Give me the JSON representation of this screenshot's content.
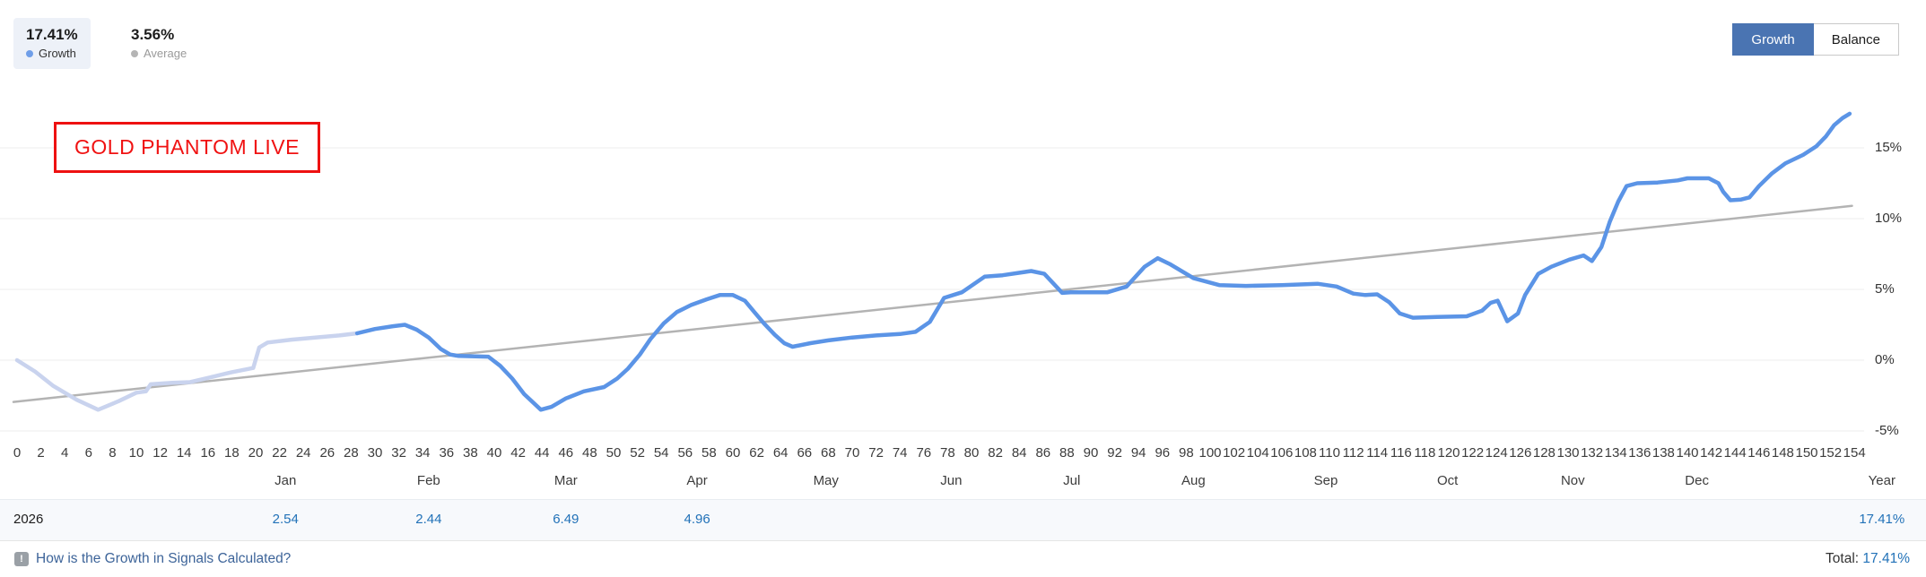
{
  "header": {
    "growth_value": "17.41%",
    "growth_label": "Growth",
    "average_value": "3.56%",
    "average_label": "Average",
    "growth_dot_color": "#6f9ee8",
    "average_dot_color": "#b5b5b5",
    "growth_button": "Growth",
    "balance_button": "Balance",
    "active_button": "Growth",
    "accent_color": "#4a74b2"
  },
  "chart_data": {
    "type": "line",
    "title": "GOLD PHANTOM LIVE",
    "title_color": "#f01212",
    "grid": true,
    "xlabel": "",
    "ylabel": "",
    "x_range": [
      0,
      154
    ],
    "x_tick_step": 2,
    "x_ticks": [
      0,
      2,
      4,
      6,
      8,
      10,
      12,
      14,
      16,
      18,
      20,
      22,
      24,
      26,
      28,
      30,
      32,
      34,
      36,
      38,
      40,
      42,
      44,
      46,
      48,
      50,
      52,
      54,
      56,
      58,
      60,
      62,
      64,
      66,
      68,
      70,
      72,
      74,
      76,
      78,
      80,
      82,
      84,
      86,
      88,
      90,
      92,
      94,
      96,
      98,
      100,
      102,
      104,
      106,
      108,
      110,
      112,
      114,
      116,
      118,
      120,
      122,
      124,
      126,
      128,
      130,
      132,
      134,
      136,
      138,
      140,
      142,
      144,
      146,
      148,
      150,
      152,
      154
    ],
    "y_axis": {
      "labels": [
        "15%",
        "10%",
        "5%",
        "0%",
        "-5%"
      ],
      "values": [
        15,
        10,
        5,
        0,
        -5
      ],
      "ylim": [
        -7.5,
        20
      ]
    },
    "months": [
      {
        "label": "Jan",
        "trade_center": 22.5
      },
      {
        "label": "Feb",
        "trade_center": 34.5
      },
      {
        "label": "Mar",
        "trade_center": 46
      },
      {
        "label": "Apr",
        "trade_center": 57
      },
      {
        "label": "May",
        "trade_center": 67.8
      },
      {
        "label": "Jun",
        "trade_center": 78.3
      },
      {
        "label": "Jul",
        "trade_center": 88.4
      },
      {
        "label": "Aug",
        "trade_center": 98.6
      },
      {
        "label": "Sep",
        "trade_center": 109.7
      },
      {
        "label": "Oct",
        "trade_center": 119.9
      },
      {
        "label": "Nov",
        "trade_center": 130.4
      },
      {
        "label": "Dec",
        "trade_center": 140.8
      },
      {
        "label": "Year",
        "trade_center": 156.3
      }
    ],
    "series": [
      {
        "name": "growth-early",
        "color": "#c9d3ee",
        "width": 4.5,
        "points": [
          [
            0,
            0
          ],
          [
            1.5,
            -0.8
          ],
          [
            3,
            -1.8
          ],
          [
            5,
            -2.8
          ],
          [
            6.8,
            -3.5
          ],
          [
            8.5,
            -2.9
          ],
          [
            10,
            -2.3
          ],
          [
            10.8,
            -2.2
          ],
          [
            11.2,
            -1.7
          ],
          [
            13,
            -1.6
          ],
          [
            14.5,
            -1.55
          ],
          [
            16,
            -1.25
          ],
          [
            18,
            -0.85
          ],
          [
            19.8,
            -0.55
          ],
          [
            20.3,
            0.9
          ],
          [
            21,
            1.25
          ],
          [
            23,
            1.45
          ],
          [
            25,
            1.6
          ],
          [
            27,
            1.75
          ],
          [
            28.5,
            1.9
          ]
        ]
      },
      {
        "name": "growth",
        "color": "#5b94e6",
        "width": 4.5,
        "points": [
          [
            28.5,
            1.9
          ],
          [
            30,
            2.2
          ],
          [
            31.5,
            2.4
          ],
          [
            32.5,
            2.5
          ],
          [
            33.5,
            2.15
          ],
          [
            34.5,
            1.6
          ],
          [
            35.5,
            0.8
          ],
          [
            36.3,
            0.4
          ],
          [
            37,
            0.3
          ],
          [
            39.5,
            0.25
          ],
          [
            40.5,
            -0.4
          ],
          [
            41.5,
            -1.3
          ],
          [
            42.5,
            -2.4
          ],
          [
            43.9,
            -3.5
          ],
          [
            44.8,
            -3.3
          ],
          [
            46,
            -2.7
          ],
          [
            47.5,
            -2.2
          ],
          [
            49.2,
            -1.9
          ],
          [
            50.3,
            -1.3
          ],
          [
            51.2,
            -0.6
          ],
          [
            52.2,
            0.4
          ],
          [
            53.1,
            1.5
          ],
          [
            54.2,
            2.6
          ],
          [
            55.3,
            3.4
          ],
          [
            56.5,
            3.9
          ],
          [
            57.8,
            4.3
          ],
          [
            58.9,
            4.6
          ],
          [
            60,
            4.6
          ],
          [
            61,
            4.2
          ],
          [
            61.8,
            3.4
          ],
          [
            62.6,
            2.6
          ],
          [
            63.5,
            1.8
          ],
          [
            64.3,
            1.2
          ],
          [
            65,
            0.95
          ],
          [
            66.5,
            1.2
          ],
          [
            68,
            1.4
          ],
          [
            70,
            1.6
          ],
          [
            72,
            1.75
          ],
          [
            74,
            1.85
          ],
          [
            75.3,
            2.0
          ],
          [
            76.5,
            2.7
          ],
          [
            77.7,
            4.4
          ],
          [
            79.2,
            4.8
          ],
          [
            81.1,
            5.9
          ],
          [
            82.6,
            6.0
          ],
          [
            85,
            6.3
          ],
          [
            86.1,
            6.1
          ],
          [
            87.6,
            4.75
          ],
          [
            88.3,
            4.8
          ],
          [
            91.4,
            4.8
          ],
          [
            93,
            5.2
          ],
          [
            94.5,
            6.6
          ],
          [
            95.6,
            7.2
          ],
          [
            96.6,
            6.8
          ],
          [
            98.6,
            5.8
          ],
          [
            100.8,
            5.3
          ],
          [
            103,
            5.25
          ],
          [
            106,
            5.3
          ],
          [
            109,
            5.4
          ],
          [
            110.6,
            5.2
          ],
          [
            112,
            4.7
          ],
          [
            113,
            4.6
          ],
          [
            114,
            4.65
          ],
          [
            115,
            4.1
          ],
          [
            115.9,
            3.3
          ],
          [
            117,
            3.0
          ],
          [
            119,
            3.05
          ],
          [
            121.5,
            3.1
          ],
          [
            122.8,
            3.5
          ],
          [
            123.5,
            4.05
          ],
          [
            124.1,
            4.2
          ],
          [
            124.9,
            2.75
          ],
          [
            125.8,
            3.3
          ],
          [
            126.4,
            4.6
          ],
          [
            127.5,
            6.1
          ],
          [
            128.6,
            6.6
          ],
          [
            130.1,
            7.1
          ],
          [
            131.3,
            7.4
          ],
          [
            132,
            7.0
          ],
          [
            132.8,
            8.0
          ],
          [
            133.5,
            9.8
          ],
          [
            134.2,
            11.2
          ],
          [
            134.9,
            12.3
          ],
          [
            135.8,
            12.5
          ],
          [
            137.5,
            12.55
          ],
          [
            139.2,
            12.7
          ],
          [
            140,
            12.85
          ],
          [
            141.8,
            12.85
          ],
          [
            142.6,
            12.5
          ],
          [
            143,
            11.9
          ],
          [
            143.6,
            11.3
          ],
          [
            144.5,
            11.35
          ],
          [
            145.2,
            11.5
          ],
          [
            146,
            12.3
          ],
          [
            147.1,
            13.2
          ],
          [
            148.2,
            13.9
          ],
          [
            149.7,
            14.5
          ],
          [
            150.8,
            15.1
          ],
          [
            151.6,
            15.8
          ],
          [
            152.3,
            16.6
          ],
          [
            153,
            17.1
          ],
          [
            153.6,
            17.41
          ]
        ]
      },
      {
        "name": "average-trend",
        "color": "#b3b3b3",
        "width": 2.5,
        "points": [
          [
            -0.3,
            -2.95
          ],
          [
            153.8,
            10.9
          ]
        ]
      }
    ],
    "gridline_color": "#ededed"
  },
  "table": {
    "year": "2026",
    "values": [
      "2.54",
      "2.44",
      "6.49",
      "4.96",
      "",
      "",
      "",
      "",
      "",
      "",
      "",
      ""
    ],
    "year_total": "17.41%"
  },
  "footer": {
    "help_link": "How is the Growth in Signals Calculated?",
    "total_label": "Total:",
    "total_value": "17.41%"
  }
}
